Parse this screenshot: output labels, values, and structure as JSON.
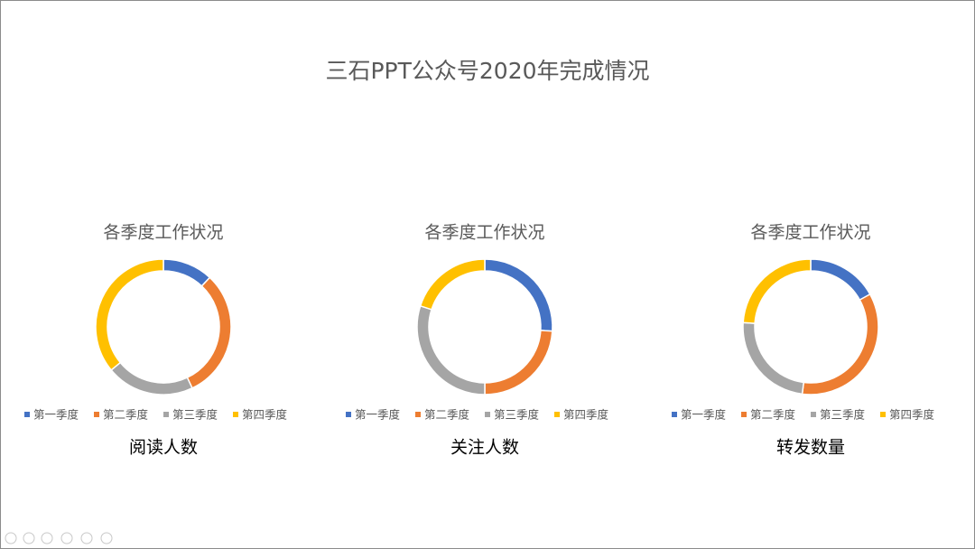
{
  "title": "三石PPT公众号2020年完成情况",
  "chart_data": [
    {
      "type": "donut",
      "title": "各季度工作状况",
      "caption": "阅读人数",
      "categories": [
        "第一季度",
        "第二季度",
        "第三季度",
        "第四季度"
      ],
      "values": [
        12,
        31,
        21,
        36
      ],
      "colors": [
        "#4472c4",
        "#ed7d31",
        "#a5a5a5",
        "#ffc000"
      ]
    },
    {
      "type": "donut",
      "title": "各季度工作状况",
      "caption": "关注人数",
      "categories": [
        "第一季度",
        "第二季度",
        "第三季度",
        "第四季度"
      ],
      "values": [
        26,
        24,
        30,
        20
      ],
      "colors": [
        "#4472c4",
        "#ed7d31",
        "#a5a5a5",
        "#ffc000"
      ]
    },
    {
      "type": "donut",
      "title": "各季度工作状况",
      "caption": "转发数量",
      "categories": [
        "第一季度",
        "第二季度",
        "第三季度",
        "第四季度"
      ],
      "values": [
        17,
        35,
        24,
        24
      ],
      "colors": [
        "#4472c4",
        "#ed7d31",
        "#a5a5a5",
        "#ffc000"
      ]
    }
  ]
}
